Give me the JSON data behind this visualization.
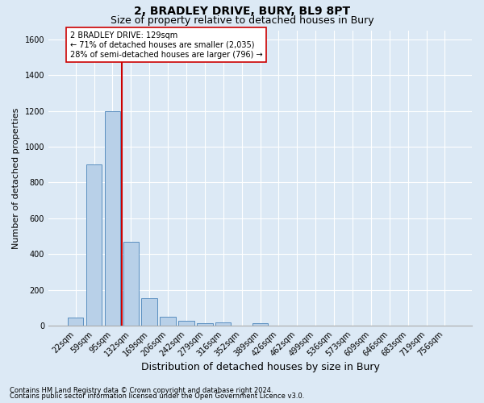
{
  "title1": "2, BRADLEY DRIVE, BURY, BL9 8PT",
  "title2": "Size of property relative to detached houses in Bury",
  "xlabel": "Distribution of detached houses by size in Bury",
  "ylabel": "Number of detached properties",
  "bar_labels": [
    "22sqm",
    "59sqm",
    "95sqm",
    "132sqm",
    "169sqm",
    "206sqm",
    "242sqm",
    "279sqm",
    "316sqm",
    "352sqm",
    "389sqm",
    "426sqm",
    "462sqm",
    "499sqm",
    "536sqm",
    "573sqm",
    "609sqm",
    "646sqm",
    "683sqm",
    "719sqm",
    "756sqm"
  ],
  "bar_values": [
    45,
    900,
    1200,
    470,
    155,
    50,
    30,
    15,
    20,
    0,
    15,
    0,
    0,
    0,
    0,
    0,
    0,
    0,
    0,
    0,
    0
  ],
  "bar_color": "#b8d0e8",
  "bar_edge_color": "#5a8fc0",
  "vline_x_index": 3,
  "vline_color": "#cc0000",
  "annotation_text": "2 BRADLEY DRIVE: 129sqm\n← 71% of detached houses are smaller (2,035)\n28% of semi-detached houses are larger (796) →",
  "annotation_box_facecolor": "#ffffff",
  "annotation_box_edgecolor": "#cc0000",
  "ylim": [
    0,
    1650
  ],
  "yticks": [
    0,
    200,
    400,
    600,
    800,
    1000,
    1200,
    1400,
    1600
  ],
  "bg_color": "#dce9f5",
  "grid_color": "#ffffff",
  "footer_line1": "Contains HM Land Registry data © Crown copyright and database right 2024.",
  "footer_line2": "Contains public sector information licensed under the Open Government Licence v3.0.",
  "title1_fontsize": 10,
  "title2_fontsize": 9,
  "tick_fontsize": 7,
  "ylabel_fontsize": 8,
  "xlabel_fontsize": 9,
  "annotation_fontsize": 7,
  "footer_fontsize": 6
}
